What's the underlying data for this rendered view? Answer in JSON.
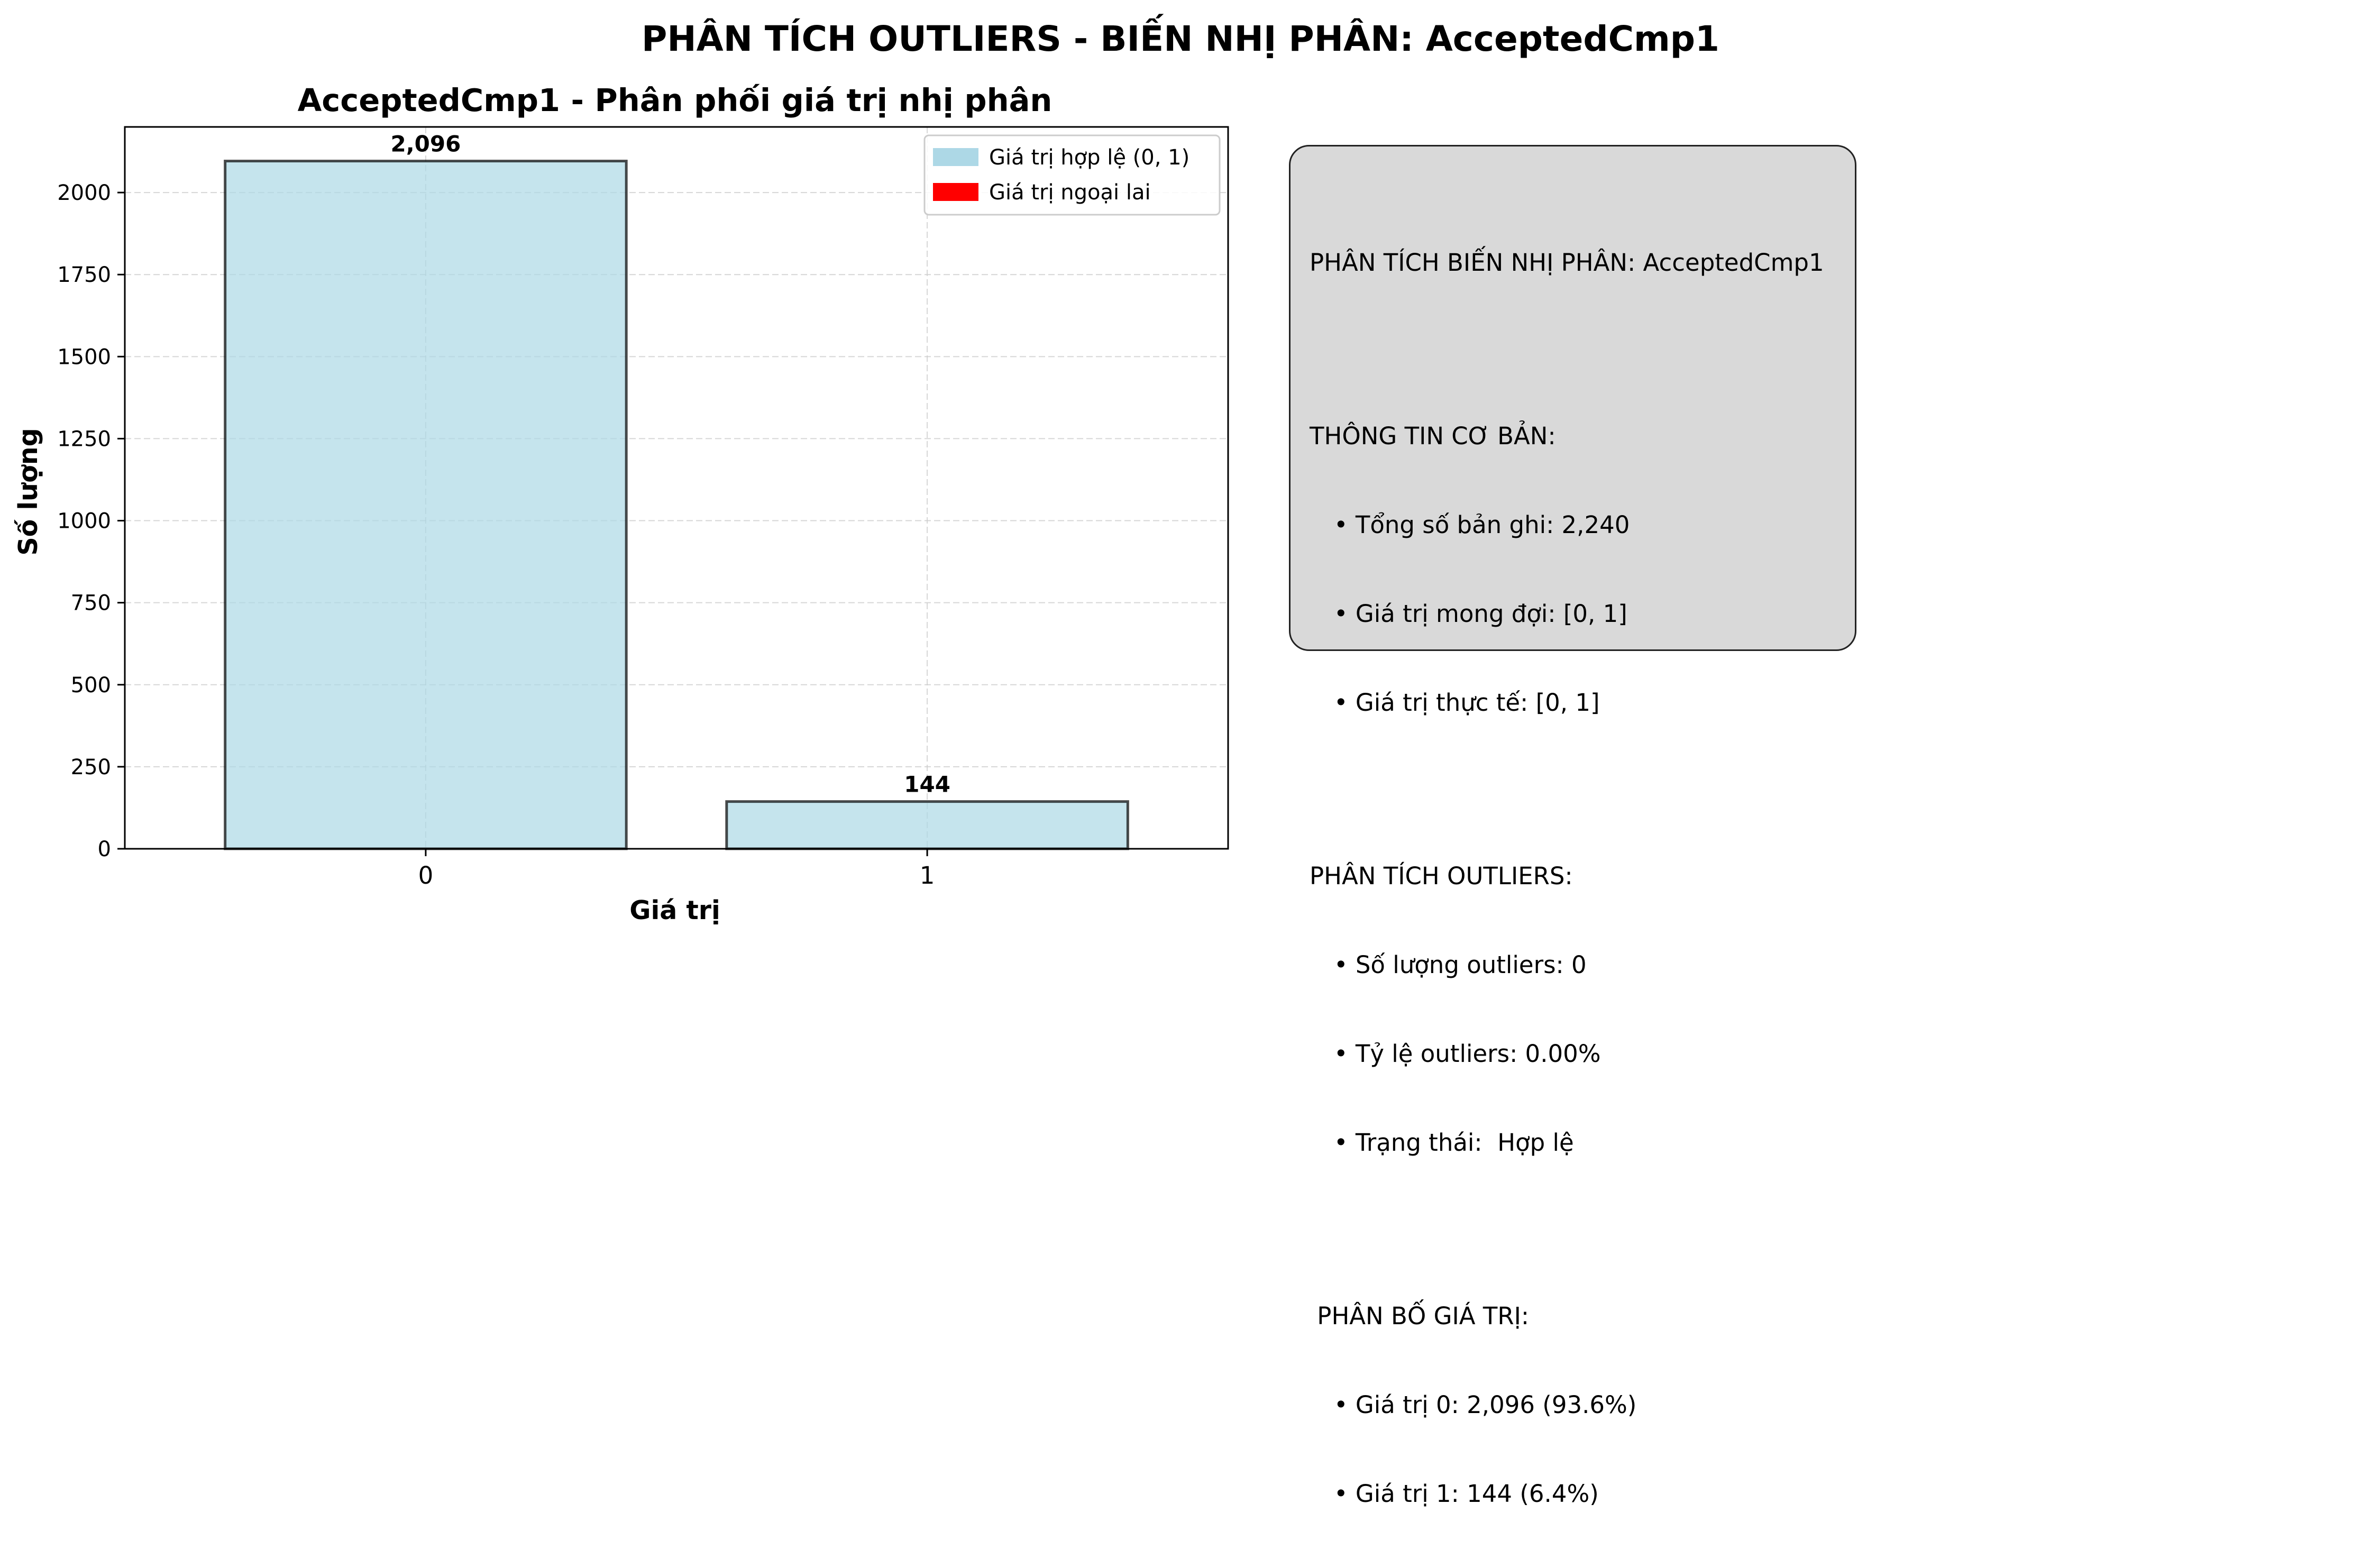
{
  "suptitle": "PHÂN TÍCH OUTLIERS - BIẾN NHỊ PHÂN: AcceptedCmp1",
  "chart_data": {
    "type": "bar",
    "title": "AcceptedCmp1 - Phân phối giá trị nhị phân",
    "xlabel": "Giá trị",
    "ylabel": "Số lượng",
    "categories": [
      "0",
      "1"
    ],
    "series": [
      {
        "name": "Giá trị hợp lệ (0, 1)",
        "values": [
          2096,
          144
        ],
        "color": "#add8e6"
      },
      {
        "name": "Giá trị ngoại lai",
        "values": [
          0,
          0
        ],
        "color": "#ff0000"
      }
    ],
    "value_labels": [
      "2,096",
      "144"
    ],
    "ylim": [
      0,
      2200
    ],
    "yticks": [
      0,
      250,
      500,
      750,
      1000,
      1250,
      1500,
      1750,
      2000
    ],
    "grid": true,
    "legend_position": "top-right"
  },
  "info_box": {
    "heading": "PHÂN TÍCH BIẾN NHỊ PHÂN: AcceptedCmp1",
    "section1_title": "THÔNG TIN CƠ BẢN:",
    "section1_items": [
      "• Tổng số bản ghi: 2,240",
      "• Giá trị mong đợi: [0, 1]",
      "• Giá trị thực tế: [0, 1]"
    ],
    "section2_title": "PHÂN TÍCH OUTLIERS:",
    "section2_items": [
      "• Số lượng outliers: 0",
      "• Tỷ lệ outliers: 0.00%",
      "• Trạng thái:  Hợp lệ"
    ],
    "section3_title": " PHÂN BỐ GIÁ TRỊ:",
    "section3_items": [
      "• Giá trị 0: 2,096 (93.6%)",
      "• Giá trị 1: 144 (6.4%)"
    ]
  }
}
